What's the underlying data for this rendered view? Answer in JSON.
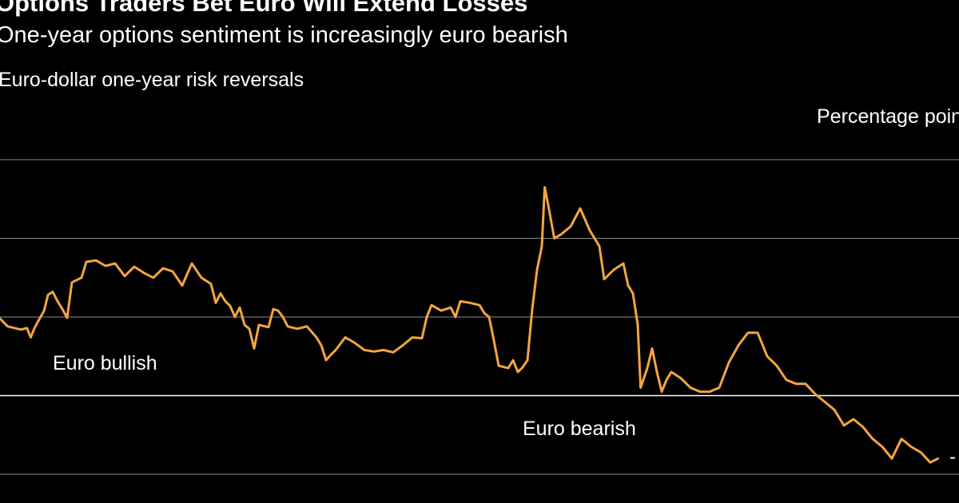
{
  "title": "Options Traders Bet Euro Will Extend Losses",
  "subtitle": "One-year options sentiment is increasingly euro bearish",
  "colors": {
    "background": "#000000",
    "line": "#f2a541",
    "grid": "#8a8a8a",
    "zero_line": "#ffffff",
    "text": "#ffffff"
  },
  "chart_data": {
    "type": "line",
    "title": "Options Traders Bet Euro Will Extend Losses",
    "subtitle": "One-year options sentiment is increasingly euro bearish",
    "series_label": "Euro-dollar one-year risk reversals",
    "ylabel": "Percentage points",
    "grid": true,
    "ylim": [
      -1.0,
      3.0
    ],
    "gridlines": [
      -1,
      0,
      1,
      2,
      3
    ],
    "annotations": [
      {
        "text": "Euro bullish",
        "x": 0.055,
        "y": 0.33
      },
      {
        "text": "Euro bearish",
        "x": 0.545,
        "y": -0.5
      }
    ],
    "last_value_label": "-",
    "series": [
      {
        "values": [
          [
            0.0,
            0.98
          ],
          [
            0.008,
            0.88
          ],
          [
            0.015,
            0.86
          ],
          [
            0.022,
            0.84
          ],
          [
            0.028,
            0.86
          ],
          [
            0.032,
            0.74
          ],
          [
            0.036,
            0.86
          ],
          [
            0.04,
            0.95
          ],
          [
            0.046,
            1.08
          ],
          [
            0.05,
            1.28
          ],
          [
            0.055,
            1.32
          ],
          [
            0.06,
            1.2
          ],
          [
            0.065,
            1.1
          ],
          [
            0.07,
            0.99
          ],
          [
            0.075,
            1.44
          ],
          [
            0.085,
            1.5
          ],
          [
            0.09,
            1.7
          ],
          [
            0.1,
            1.72
          ],
          [
            0.11,
            1.65
          ],
          [
            0.12,
            1.68
          ],
          [
            0.13,
            1.52
          ],
          [
            0.14,
            1.64
          ],
          [
            0.15,
            1.56
          ],
          [
            0.16,
            1.5
          ],
          [
            0.17,
            1.62
          ],
          [
            0.18,
            1.58
          ],
          [
            0.19,
            1.4
          ],
          [
            0.2,
            1.68
          ],
          [
            0.21,
            1.5
          ],
          [
            0.22,
            1.42
          ],
          [
            0.225,
            1.18
          ],
          [
            0.23,
            1.3
          ],
          [
            0.235,
            1.2
          ],
          [
            0.24,
            1.14
          ],
          [
            0.245,
            1.0
          ],
          [
            0.25,
            1.12
          ],
          [
            0.255,
            0.9
          ],
          [
            0.26,
            0.85
          ],
          [
            0.265,
            0.6
          ],
          [
            0.27,
            0.9
          ],
          [
            0.28,
            0.87
          ],
          [
            0.285,
            1.1
          ],
          [
            0.29,
            1.08
          ],
          [
            0.295,
            1.0
          ],
          [
            0.3,
            0.88
          ],
          [
            0.31,
            0.85
          ],
          [
            0.32,
            0.88
          ],
          [
            0.33,
            0.74
          ],
          [
            0.335,
            0.64
          ],
          [
            0.34,
            0.45
          ],
          [
            0.345,
            0.52
          ],
          [
            0.35,
            0.58
          ],
          [
            0.36,
            0.74
          ],
          [
            0.37,
            0.67
          ],
          [
            0.38,
            0.58
          ],
          [
            0.39,
            0.56
          ],
          [
            0.4,
            0.58
          ],
          [
            0.41,
            0.55
          ],
          [
            0.42,
            0.64
          ],
          [
            0.43,
            0.74
          ],
          [
            0.44,
            0.73
          ],
          [
            0.445,
            1.0
          ],
          [
            0.45,
            1.15
          ],
          [
            0.46,
            1.08
          ],
          [
            0.47,
            1.12
          ],
          [
            0.475,
            1.0
          ],
          [
            0.48,
            1.2
          ],
          [
            0.49,
            1.18
          ],
          [
            0.5,
            1.15
          ],
          [
            0.505,
            1.05
          ],
          [
            0.51,
            1.0
          ],
          [
            0.515,
            0.7
          ],
          [
            0.52,
            0.38
          ],
          [
            0.53,
            0.35
          ],
          [
            0.535,
            0.45
          ],
          [
            0.54,
            0.3
          ],
          [
            0.545,
            0.36
          ],
          [
            0.55,
            0.45
          ],
          [
            0.555,
            1.1
          ],
          [
            0.56,
            1.6
          ],
          [
            0.565,
            1.9
          ],
          [
            0.568,
            2.65
          ],
          [
            0.572,
            2.4
          ],
          [
            0.578,
            2.0
          ],
          [
            0.585,
            2.05
          ],
          [
            0.595,
            2.15
          ],
          [
            0.605,
            2.38
          ],
          [
            0.615,
            2.1
          ],
          [
            0.625,
            1.9
          ],
          [
            0.63,
            1.48
          ],
          [
            0.64,
            1.6
          ],
          [
            0.65,
            1.68
          ],
          [
            0.655,
            1.4
          ],
          [
            0.66,
            1.3
          ],
          [
            0.665,
            0.9
          ],
          [
            0.668,
            0.1
          ],
          [
            0.675,
            0.35
          ],
          [
            0.68,
            0.6
          ],
          [
            0.685,
            0.3
          ],
          [
            0.69,
            0.05
          ],
          [
            0.695,
            0.2
          ],
          [
            0.7,
            0.3
          ],
          [
            0.71,
            0.22
          ],
          [
            0.72,
            0.1
          ],
          [
            0.73,
            0.05
          ],
          [
            0.74,
            0.05
          ],
          [
            0.75,
            0.1
          ],
          [
            0.76,
            0.42
          ],
          [
            0.77,
            0.64
          ],
          [
            0.78,
            0.8
          ],
          [
            0.79,
            0.8
          ],
          [
            0.8,
            0.5
          ],
          [
            0.81,
            0.38
          ],
          [
            0.82,
            0.2
          ],
          [
            0.83,
            0.15
          ],
          [
            0.84,
            0.15
          ],
          [
            0.85,
            0.02
          ],
          [
            0.86,
            -0.08
          ],
          [
            0.87,
            -0.18
          ],
          [
            0.88,
            -0.38
          ],
          [
            0.89,
            -0.3
          ],
          [
            0.9,
            -0.4
          ],
          [
            0.91,
            -0.55
          ],
          [
            0.92,
            -0.65
          ],
          [
            0.93,
            -0.8
          ],
          [
            0.94,
            -0.55
          ],
          [
            0.95,
            -0.65
          ],
          [
            0.96,
            -0.72
          ],
          [
            0.97,
            -0.85
          ],
          [
            0.978,
            -0.8
          ]
        ]
      }
    ]
  }
}
